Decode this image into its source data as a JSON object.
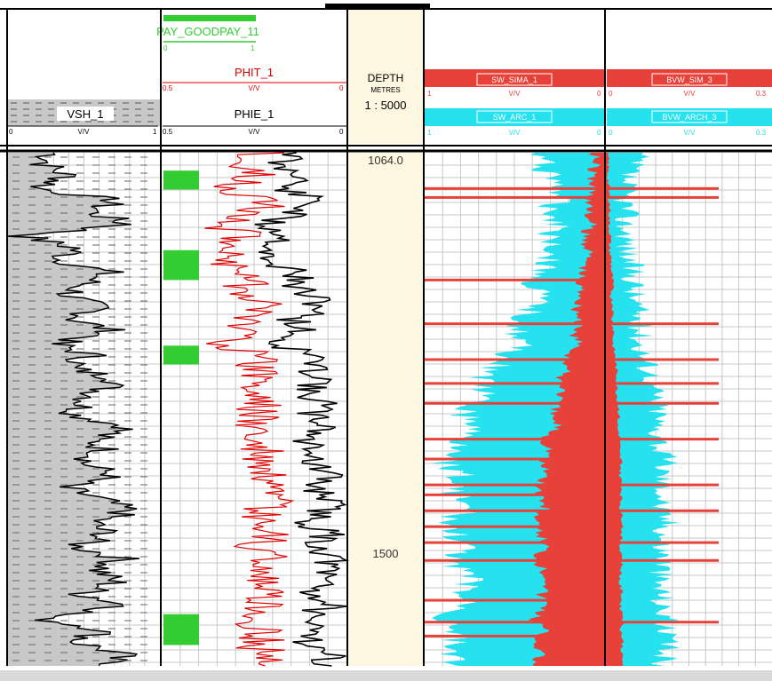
{
  "colors": {
    "border": "#000000",
    "grid": "#c8c8c8",
    "depth_track_bg": "#fdf7e1",
    "shale_fill": "#c8c8c8",
    "pay_flag": "#33cc33",
    "phit": "#e00000",
    "phie": "#000000",
    "sw": "#e8413a",
    "cyan": "#25e2ee",
    "scrollbar": "#d9d9d9"
  },
  "header": {
    "pay": {
      "name": "PAY_GOODPAY_11",
      "scale_left": "0",
      "scale_right": "1"
    },
    "phit": {
      "name": "PHIT_1",
      "unit": "V/V",
      "scale_left": "0.5",
      "scale_right": "0"
    },
    "phie": {
      "name": "PHIE_1",
      "unit": "V/V",
      "scale_left": "0.5",
      "scale_right": "0"
    },
    "vsh": {
      "name": "VSH_1",
      "unit": "V/V",
      "scale_left": "0",
      "scale_right": "1"
    },
    "depth": {
      "title": "DEPTH",
      "units": "METRES",
      "scale": "1 : 5000"
    },
    "sw_sima": {
      "name": "SW_SIMA_1",
      "unit": "V/V",
      "scale_left": "1",
      "scale_right": "0"
    },
    "sw_arc": {
      "name": "SW_ARC_1",
      "unit": "V/V",
      "scale_left": "1",
      "scale_right": "0"
    },
    "bvw_sim": {
      "name": "BVW_SIM_3",
      "unit": "V/V",
      "scale_left": "0",
      "scale_right": "0.3"
    },
    "bvw_arch": {
      "name": "BVW_ARCH_3",
      "unit": "V/V",
      "scale_left": "0",
      "scale_right": "0.3"
    }
  },
  "depth_labels": [
    "1064.0",
    "1500"
  ],
  "chart_data": {
    "type": "well-log",
    "depth_unit": "METRES",
    "depth_range": [
      1064.0,
      1580.0
    ],
    "depth_ticks": [
      1064.0,
      1500
    ],
    "pay_intervals": [
      [
        1082,
        1101
      ],
      [
        1162,
        1192
      ],
      [
        1258,
        1277
      ],
      [
        1528,
        1559
      ]
    ],
    "vsh": {
      "depth": [
        1064,
        1076,
        1088,
        1100,
        1112,
        1124,
        1136,
        1148,
        1160,
        1172,
        1184,
        1196,
        1208,
        1220,
        1232,
        1244,
        1256,
        1268,
        1280,
        1292,
        1304,
        1316,
        1328,
        1340,
        1352,
        1364,
        1376,
        1388,
        1400,
        1412,
        1424,
        1436,
        1448,
        1460,
        1472,
        1484,
        1496,
        1508,
        1520,
        1532,
        1544,
        1556,
        1568,
        1580
      ],
      "values": [
        0.3,
        0.25,
        0.4,
        0.2,
        0.7,
        0.55,
        0.8,
        0.1,
        0.45,
        0.35,
        0.65,
        0.5,
        0.4,
        0.6,
        0.45,
        0.7,
        0.3,
        0.55,
        0.4,
        0.75,
        0.6,
        0.5,
        0.45,
        0.8,
        0.55,
        0.65,
        0.5,
        0.7,
        0.35,
        0.6,
        0.8,
        0.55,
        0.65,
        0.45,
        0.75,
        0.6,
        0.7,
        0.5,
        0.8,
        0.2,
        0.65,
        0.45,
        0.75,
        0.6
      ]
    },
    "phit": {
      "depth": [
        1064,
        1076,
        1088,
        1100,
        1112,
        1124,
        1136,
        1148,
        1160,
        1172,
        1184,
        1196,
        1208,
        1220,
        1232,
        1244,
        1256,
        1268,
        1280,
        1292,
        1304,
        1316,
        1328,
        1340,
        1352,
        1364,
        1376,
        1388,
        1400,
        1412,
        1424,
        1436,
        1448,
        1460,
        1472,
        1484,
        1496,
        1508,
        1520,
        1532,
        1544,
        1556,
        1568,
        1580
      ],
      "values": [
        0.22,
        0.3,
        0.25,
        0.32,
        0.2,
        0.26,
        0.34,
        0.28,
        0.3,
        0.35,
        0.24,
        0.27,
        0.25,
        0.22,
        0.28,
        0.26,
        0.31,
        0.25,
        0.24,
        0.23,
        0.26,
        0.22,
        0.25,
        0.24,
        0.27,
        0.23,
        0.25,
        0.22,
        0.24,
        0.21,
        0.23,
        0.25,
        0.22,
        0.24,
        0.21,
        0.23,
        0.22,
        0.24,
        0.21,
        0.26,
        0.22,
        0.24,
        0.23,
        0.22
      ]
    },
    "phie": {
      "depth": [
        1064,
        1076,
        1088,
        1100,
        1112,
        1124,
        1136,
        1148,
        1160,
        1172,
        1184,
        1196,
        1208,
        1220,
        1232,
        1244,
        1256,
        1268,
        1280,
        1292,
        1304,
        1316,
        1328,
        1340,
        1352,
        1364,
        1376,
        1388,
        1400,
        1412,
        1424,
        1436,
        1448,
        1460,
        1472,
        1484,
        1496,
        1508,
        1520,
        1532,
        1544,
        1556,
        1568,
        1580
      ],
      "values": [
        0.12,
        0.2,
        0.1,
        0.18,
        0.08,
        0.14,
        0.22,
        0.16,
        0.2,
        0.24,
        0.12,
        0.15,
        0.1,
        0.06,
        0.14,
        0.12,
        0.2,
        0.08,
        0.1,
        0.05,
        0.12,
        0.06,
        0.1,
        0.04,
        0.12,
        0.07,
        0.1,
        0.05,
        0.09,
        0.04,
        0.06,
        0.1,
        0.05,
        0.08,
        0.03,
        0.07,
        0.05,
        0.09,
        0.04,
        0.14,
        0.06,
        0.1,
        0.05,
        0.04
      ]
    },
    "sw_sima": {
      "depth": [
        1064,
        1076,
        1088,
        1100,
        1112,
        1124,
        1136,
        1148,
        1160,
        1172,
        1184,
        1196,
        1208,
        1220,
        1232,
        1244,
        1256,
        1268,
        1280,
        1292,
        1304,
        1316,
        1328,
        1340,
        1352,
        1364,
        1376,
        1388,
        1400,
        1412,
        1424,
        1436,
        1448,
        1460,
        1472,
        1484,
        1496,
        1508,
        1520,
        1532,
        1544,
        1556,
        1568,
        1580
      ],
      "values": [
        0.05,
        0.06,
        0.08,
        0.07,
        0.09,
        0.1,
        0.08,
        0.12,
        0.09,
        0.1,
        0.13,
        0.15,
        0.12,
        0.16,
        0.14,
        0.18,
        0.15,
        0.2,
        0.22,
        0.25,
        0.23,
        0.28,
        0.3,
        0.26,
        0.34,
        0.3,
        0.36,
        0.32,
        0.38,
        0.35,
        0.34,
        0.4,
        0.36,
        0.33,
        0.38,
        0.34,
        0.3,
        0.36,
        0.32,
        0.4,
        0.34,
        0.38,
        0.36,
        0.4
      ]
    },
    "sw_arc": {
      "depth": [
        1064,
        1076,
        1088,
        1100,
        1112,
        1124,
        1136,
        1148,
        1160,
        1172,
        1184,
        1196,
        1208,
        1220,
        1232,
        1244,
        1256,
        1268,
        1280,
        1292,
        1304,
        1316,
        1328,
        1340,
        1352,
        1364,
        1376,
        1388,
        1400,
        1412,
        1424,
        1436,
        1448,
        1460,
        1472,
        1484,
        1496,
        1508,
        1520,
        1532,
        1544,
        1556,
        1568,
        1580
      ],
      "values": [
        0.4,
        0.35,
        0.3,
        0.25,
        0.28,
        0.3,
        0.25,
        0.3,
        0.28,
        0.32,
        0.36,
        0.4,
        0.38,
        0.42,
        0.45,
        0.5,
        0.48,
        0.55,
        0.62,
        0.7,
        0.68,
        0.75,
        0.8,
        0.72,
        0.82,
        0.78,
        0.88,
        0.8,
        0.85,
        0.82,
        0.78,
        0.9,
        0.84,
        0.8,
        0.86,
        0.8,
        0.75,
        0.82,
        0.78,
        0.92,
        0.8,
        0.86,
        0.84,
        0.82
      ]
    },
    "bvw_sim": {
      "depth": [
        1064,
        1076,
        1088,
        1100,
        1112,
        1124,
        1136,
        1148,
        1160,
        1172,
        1184,
        1196,
        1208,
        1220,
        1232,
        1244,
        1256,
        1268,
        1280,
        1292,
        1304,
        1316,
        1328,
        1340,
        1352,
        1364,
        1376,
        1388,
        1400,
        1412,
        1424,
        1436,
        1448,
        1460,
        1472,
        1484,
        1496,
        1508,
        1520,
        1532,
        1544,
        1556,
        1568,
        1580
      ],
      "values": [
        0.004,
        0.006,
        0.005,
        0.007,
        0.008,
        0.009,
        0.007,
        0.01,
        0.008,
        0.011,
        0.012,
        0.014,
        0.011,
        0.015,
        0.013,
        0.016,
        0.014,
        0.018,
        0.02,
        0.022,
        0.021,
        0.024,
        0.026,
        0.022,
        0.028,
        0.025,
        0.03,
        0.027,
        0.031,
        0.029,
        0.028,
        0.033,
        0.03,
        0.027,
        0.032,
        0.029,
        0.026,
        0.031,
        0.028,
        0.034,
        0.029,
        0.032,
        0.03,
        0.033
      ]
    },
    "bvw_arch": {
      "depth": [
        1064,
        1076,
        1088,
        1100,
        1112,
        1124,
        1136,
        1148,
        1160,
        1172,
        1184,
        1196,
        1208,
        1220,
        1232,
        1244,
        1256,
        1268,
        1280,
        1292,
        1304,
        1316,
        1328,
        1340,
        1352,
        1364,
        1376,
        1388,
        1400,
        1412,
        1424,
        1436,
        1448,
        1460,
        1472,
        1484,
        1496,
        1508,
        1520,
        1532,
        1544,
        1556,
        1568,
        1580
      ],
      "values": [
        0.06,
        0.05,
        0.04,
        0.035,
        0.038,
        0.04,
        0.036,
        0.042,
        0.04,
        0.045,
        0.05,
        0.055,
        0.052,
        0.058,
        0.06,
        0.066,
        0.064,
        0.072,
        0.08,
        0.09,
        0.088,
        0.095,
        0.1,
        0.092,
        0.105,
        0.1,
        0.112,
        0.104,
        0.11,
        0.106,
        0.1,
        0.115,
        0.108,
        0.102,
        0.11,
        0.104,
        0.096,
        0.106,
        0.1,
        0.118,
        0.104,
        0.112,
        0.108,
        0.106
      ]
    },
    "spikes": {
      "sw_sima_depths": [
        1100,
        1109,
        1192,
        1236,
        1272,
        1296,
        1316,
        1352,
        1372,
        1398,
        1408,
        1424,
        1440,
        1456,
        1474,
        1514,
        1536,
        1550
      ],
      "bvw_depths": [
        1100,
        1109,
        1236,
        1272,
        1296,
        1316,
        1352,
        1398,
        1424,
        1456,
        1474,
        1536
      ]
    }
  }
}
